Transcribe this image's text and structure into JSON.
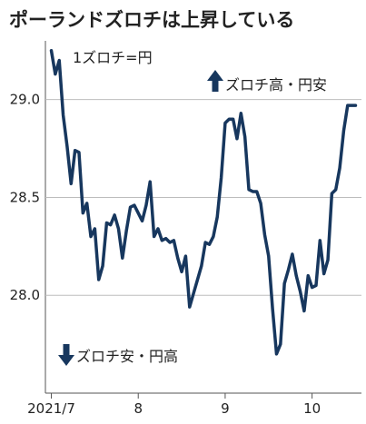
{
  "chart_data": {
    "type": "line",
    "title": "ポーランドズロチは上昇している",
    "unit_note": "1ズロチ=円",
    "annotation_up": "ズロチ高・円安",
    "annotation_down": "ズロチ安・円高",
    "ylim": [
      27.5,
      29.3
    ],
    "y_ticks": [
      {
        "value": 29.0,
        "label": "29.0"
      },
      {
        "value": 28.5,
        "label": "28.5"
      },
      {
        "value": 28.0,
        "label": "28.0"
      }
    ],
    "x_ticks": [
      {
        "label": "2021/7",
        "x": 0
      },
      {
        "label": "8",
        "x": 22
      },
      {
        "label": "9",
        "x": 44
      },
      {
        "label": "10",
        "x": 66
      }
    ],
    "x_range": [
      -1.5,
      78.5
    ],
    "line_color": "#17375e",
    "x": [
      0,
      1,
      2,
      3,
      4,
      5,
      6,
      7,
      8,
      9,
      10,
      11,
      12,
      13,
      14,
      15,
      16,
      17,
      18,
      19,
      20,
      21,
      22,
      23,
      24,
      25,
      26,
      27,
      28,
      29,
      30,
      31,
      32,
      33,
      34,
      35,
      36,
      37,
      38,
      39,
      40,
      41,
      42,
      43,
      44,
      45,
      46,
      47,
      48,
      49,
      50,
      51,
      52,
      53,
      54,
      55,
      56,
      57,
      58,
      59,
      60,
      61,
      62,
      63,
      64,
      65,
      66,
      67,
      68,
      69,
      70,
      71,
      72,
      73,
      74,
      75,
      76,
      77
    ],
    "values": [
      29.25,
      29.13,
      29.2,
      28.92,
      28.76,
      28.57,
      28.74,
      28.73,
      28.42,
      28.47,
      28.3,
      28.34,
      28.08,
      28.15,
      28.37,
      28.36,
      28.41,
      28.34,
      28.19,
      28.33,
      28.45,
      28.46,
      28.42,
      28.38,
      28.46,
      28.58,
      28.3,
      28.34,
      28.28,
      28.29,
      28.27,
      28.28,
      28.19,
      28.12,
      28.2,
      27.94,
      28.01,
      28.08,
      28.15,
      28.27,
      28.26,
      28.3,
      28.4,
      28.6,
      28.88,
      28.9,
      28.9,
      28.8,
      28.93,
      28.81,
      28.54,
      28.53,
      28.53,
      28.47,
      28.31,
      28.2,
      27.93,
      27.7,
      27.75,
      28.06,
      28.13,
      28.21,
      28.1,
      28.02,
      27.92,
      28.1,
      28.04,
      28.05,
      28.28,
      28.11,
      28.18,
      28.52,
      28.54,
      28.65,
      28.84,
      28.97,
      28.97,
      28.97
    ]
  }
}
